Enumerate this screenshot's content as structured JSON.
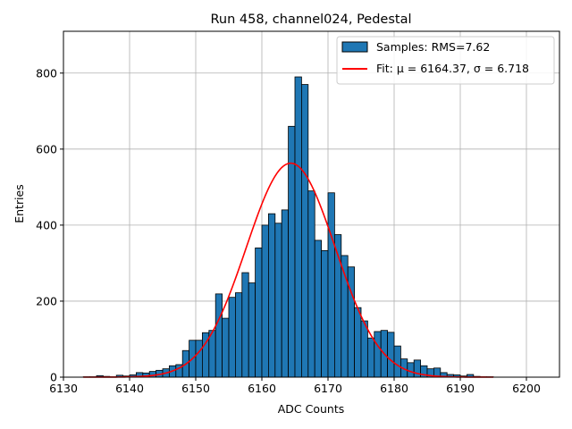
{
  "chart_data": {
    "type": "bar",
    "title": "Run 458, channel024, Pedestal",
    "xlabel": "ADC Counts",
    "ylabel": "Entries",
    "xlim": [
      6130,
      6205
    ],
    "ylim": [
      0,
      910
    ],
    "xticks": [
      6130,
      6140,
      6150,
      6160,
      6170,
      6180,
      6190,
      6200
    ],
    "yticks": [
      0,
      200,
      400,
      600,
      800
    ],
    "grid": true,
    "legend_position": "top-right",
    "bin_width": 1,
    "bins": {
      "x": [
        6133,
        6134,
        6135,
        6136,
        6137,
        6138,
        6139,
        6140,
        6141,
        6142,
        6143,
        6144,
        6145,
        6146,
        6147,
        6148,
        6149,
        6150,
        6151,
        6152,
        6153,
        6154,
        6155,
        6156,
        6157,
        6158,
        6159,
        6160,
        6161,
        6162,
        6163,
        6164,
        6165,
        6166,
        6167,
        6168,
        6169,
        6170,
        6171,
        6172,
        6173,
        6174,
        6175,
        6176,
        6177,
        6178,
        6179,
        6180,
        6181,
        6182,
        6183,
        6184,
        6185,
        6186,
        6187,
        6188,
        6189,
        6190,
        6191,
        6192,
        6193,
        6194
      ],
      "values": [
        1,
        1,
        4,
        2,
        1,
        5,
        3,
        6,
        12,
        11,
        15,
        18,
        22,
        30,
        33,
        70,
        97,
        97,
        117,
        123,
        219,
        155,
        210,
        222,
        275,
        248,
        340,
        400,
        430,
        405,
        440,
        660,
        790,
        770,
        490,
        360,
        333,
        485,
        375,
        320,
        290,
        183,
        148,
        103,
        120,
        123,
        118,
        82,
        48,
        38,
        45,
        30,
        22,
        24,
        12,
        7,
        6,
        3,
        7,
        2,
        1,
        1
      ]
    },
    "series": [
      {
        "name": "Samples: RMS=7.62",
        "kind": "histogram",
        "color": "#1f77b4"
      },
      {
        "name": "Fit: μ = 6164.37, σ = 6.718",
        "kind": "line",
        "color": "#ff0000",
        "mu": 6164.37,
        "sigma": 6.718,
        "amplitude": 563,
        "x_range": [
          6133,
          6195
        ]
      }
    ]
  }
}
